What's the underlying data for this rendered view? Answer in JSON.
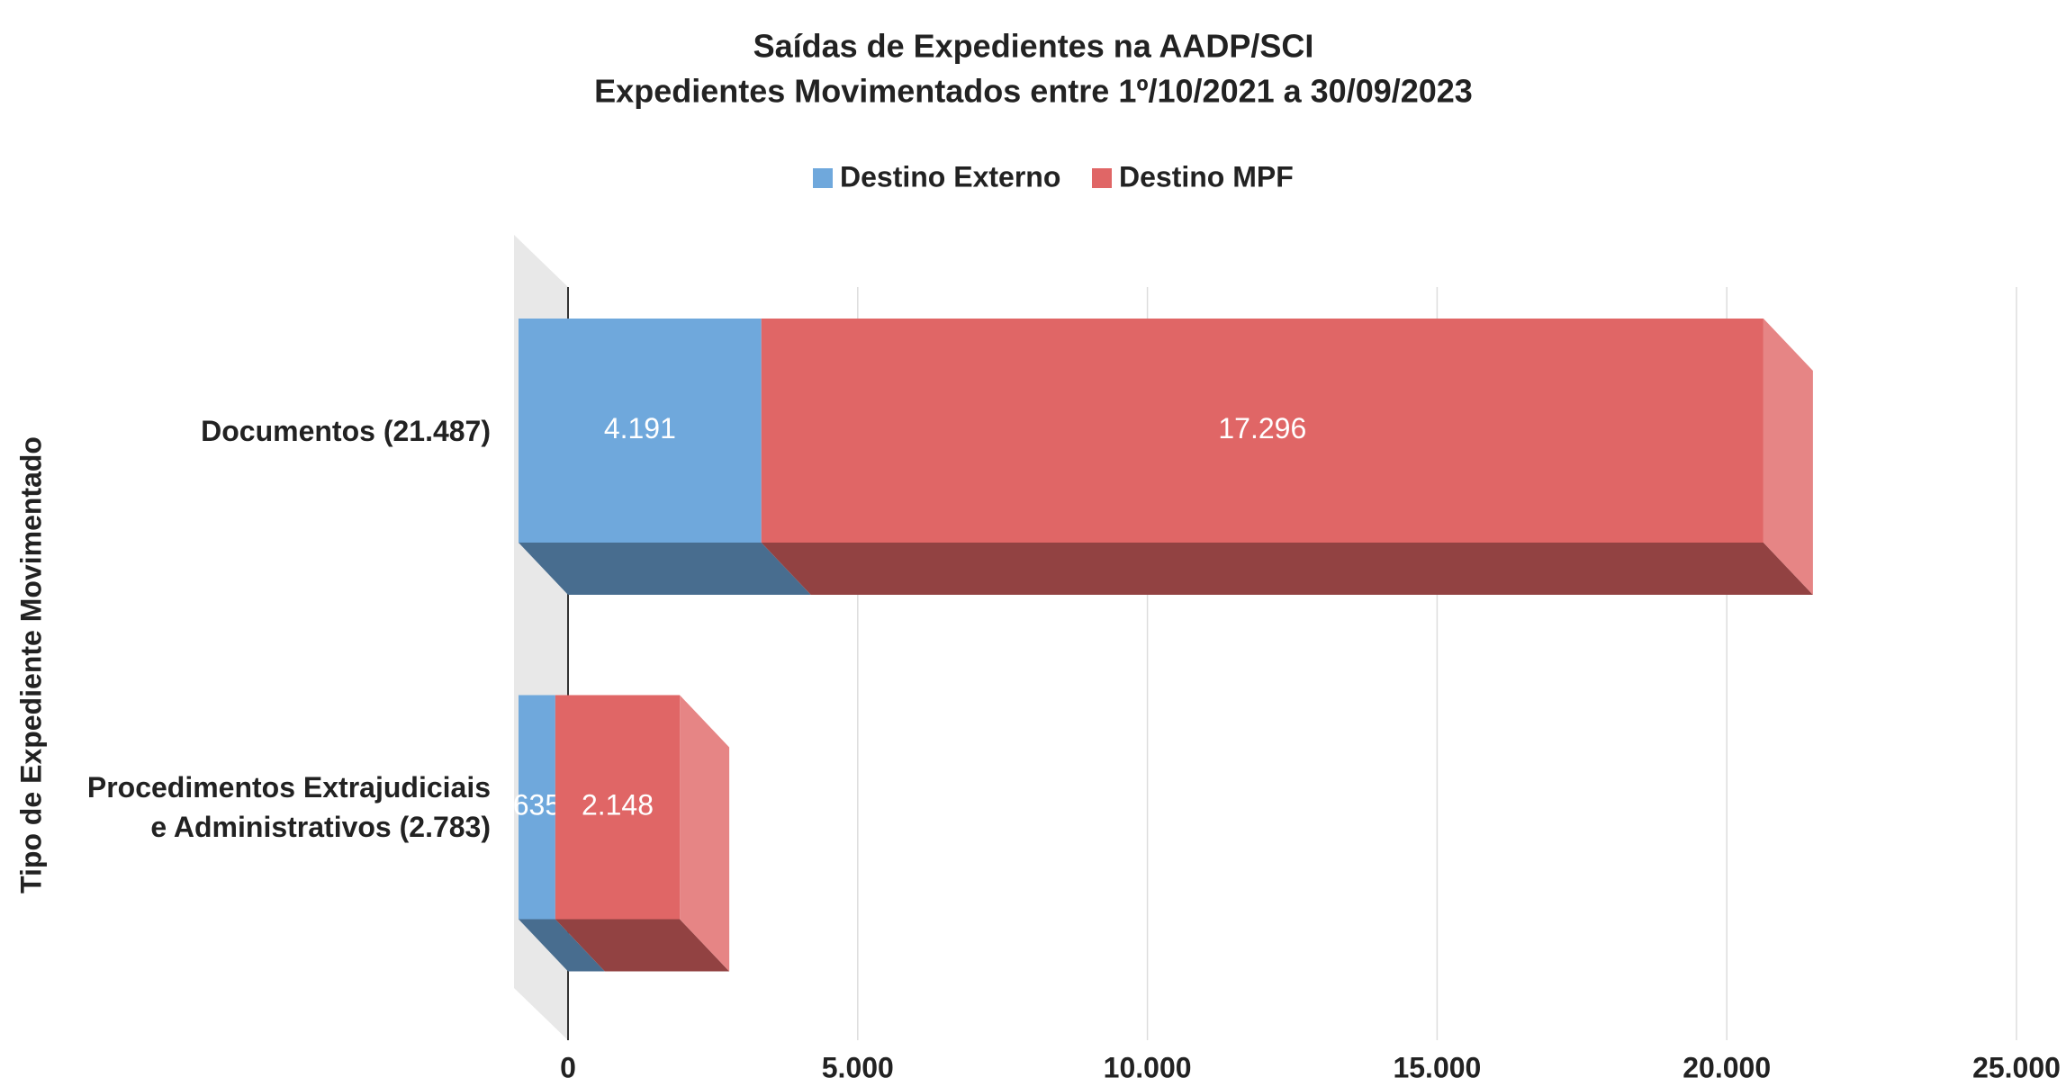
{
  "chart_data": {
    "type": "bar",
    "orientation": "horizontal",
    "stacked": true,
    "title": "Saídas de Expedientes na AADP/SCI",
    "subtitle": "Expedientes Movimentados entre 1º/10/2021 a 30/09/2023",
    "ylabel": "Tipo de Expediente Movimentado",
    "categories": [
      "Documentos (21.487)",
      "Procedimentos Extrajudiciais e Administrativos (2.783)"
    ],
    "series": [
      {
        "name": "Destino Externo",
        "color": "#6fa8dc",
        "values": [
          4191,
          635
        ],
        "value_labels": [
          "4.191",
          "635"
        ]
      },
      {
        "name": "Destino MPF",
        "color": "#e06666",
        "values": [
          17296,
          2148
        ],
        "value_labels": [
          "17.296",
          "2.148"
        ]
      }
    ],
    "xlim": [
      0,
      25000
    ],
    "xticks": [
      0,
      {
        "value": 5000,
        "label": "5.000"
      },
      {
        "value": 10000,
        "label": "10.000"
      },
      {
        "value": 15000,
        "label": "15.000"
      },
      {
        "value": 20000,
        "label": "20.000"
      },
      {
        "value": 25000,
        "label": "25.000"
      }
    ],
    "grid": true,
    "legend": "top"
  }
}
